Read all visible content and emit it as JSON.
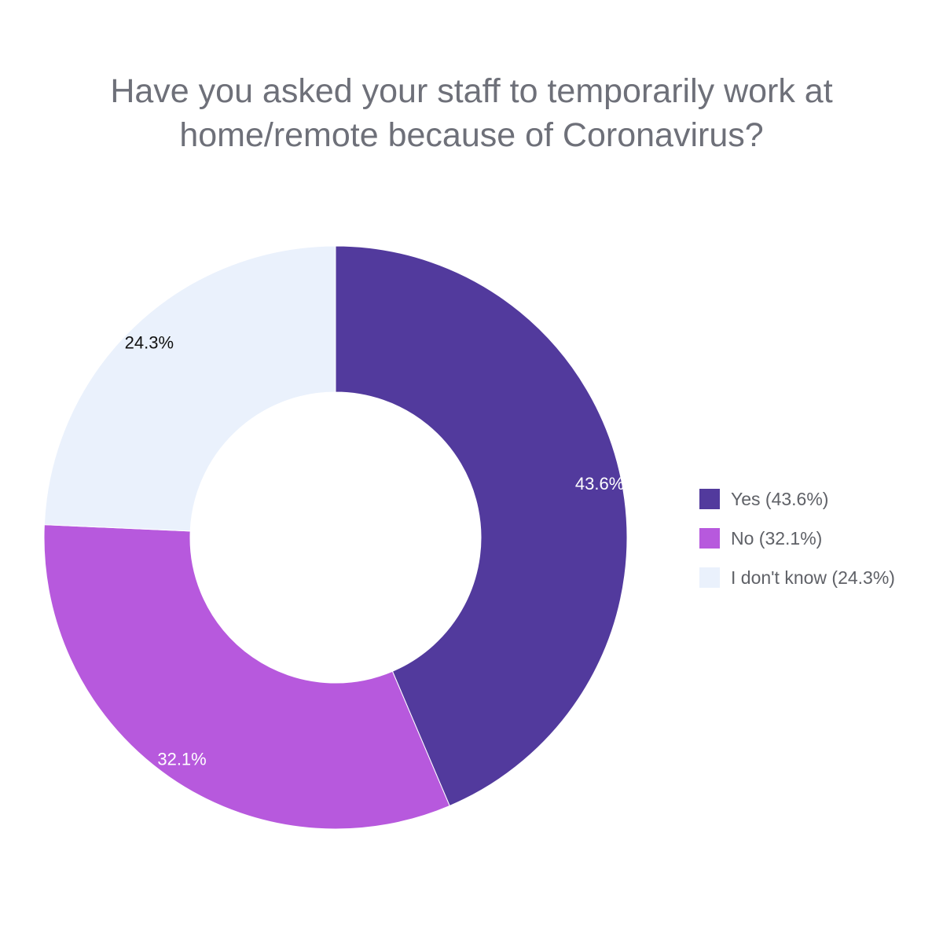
{
  "chart_data": {
    "type": "pie",
    "donut": true,
    "title_lines": [
      "Have you asked your staff to temporarily work at",
      "home/remote because of Coronavirus?"
    ],
    "slices": [
      {
        "label": "Yes",
        "value": 43.6,
        "value_label": "43.6%",
        "legend_label": "Yes (43.6%)",
        "color": "#523a9d",
        "label_color": "#ffffff"
      },
      {
        "label": "No",
        "value": 32.1,
        "value_label": "32.1%",
        "legend_label": "No (32.1%)",
        "color": "#b759dd",
        "label_color": "#ffffff"
      },
      {
        "label": "I don't know",
        "value": 24.3,
        "value_label": "24.3%",
        "legend_label": "I don't know (24.3%)",
        "color": "#eaf1fc",
        "label_color": "#111111"
      }
    ],
    "start_angle_deg": 0,
    "direction": "clockwise",
    "legend_position": "right"
  }
}
